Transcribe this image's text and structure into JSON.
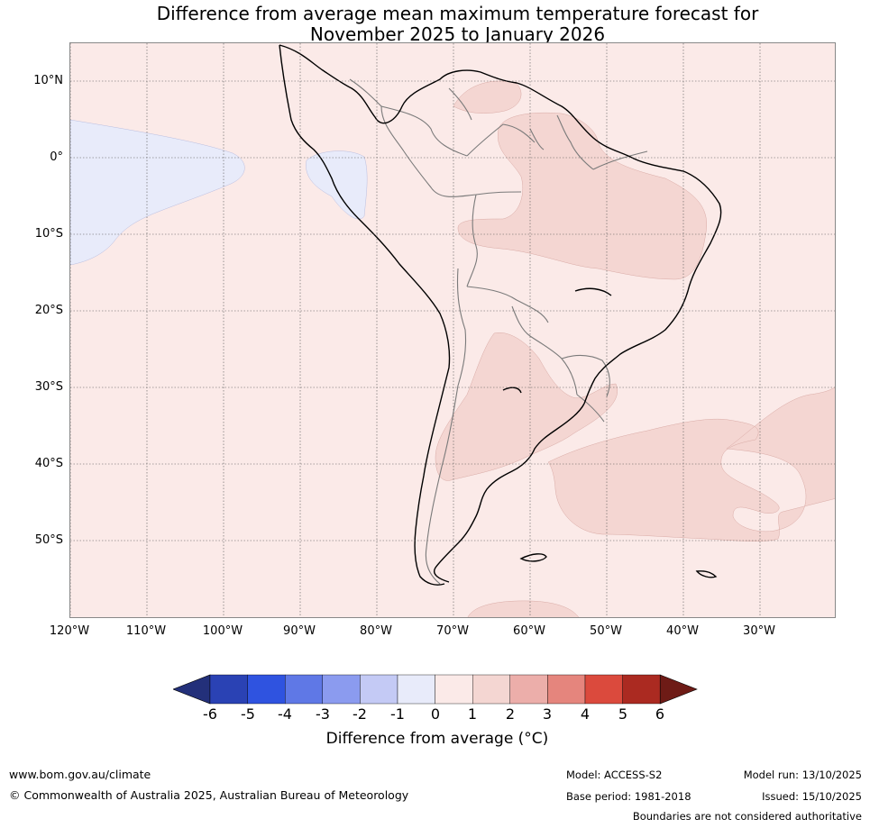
{
  "title": {
    "line1": "Difference from average mean maximum temperature forecast for",
    "line2": "November 2025 to January 2026"
  },
  "map": {
    "lat_labels": [
      "10°N",
      "0°",
      "10°S",
      "20°S",
      "30°S",
      "40°S",
      "50°S"
    ],
    "lon_labels": [
      "120°W",
      "110°W",
      "100°W",
      "90°W",
      "80°W",
      "70°W",
      "60°W",
      "50°W",
      "40°W",
      "30°W"
    ],
    "colors": {
      "band_0_1": "#fbeae8",
      "band_1_2": "#f4d6d2",
      "band_n1_0": "#e8ebfa",
      "coast": "#000000",
      "border": "#7a7a7a",
      "grid": "#555555"
    }
  },
  "colorbar": {
    "ticks": [
      "-6",
      "-5",
      "-4",
      "-3",
      "-2",
      "-1",
      "0",
      "1",
      "2",
      "3",
      "4",
      "5",
      "6"
    ],
    "colors": [
      "#23307a",
      "#2a42b4",
      "#2f53e0",
      "#5f78e6",
      "#8b9bef",
      "#c4caf5",
      "#e8ebfa",
      "#fbeae8",
      "#f4d6d2",
      "#ecaeaa",
      "#e5857d",
      "#db4a3d",
      "#ab2a21",
      "#6e1b16"
    ],
    "label": "Difference from average (°C)"
  },
  "footer": {
    "website": "www.bom.gov.au/climate",
    "copyright": "© Commonwealth of Australia 2025, Australian Bureau of Meteorology",
    "model": "Model: ACCESS-S2",
    "base_period": "Base period: 1981-2018",
    "model_run": "Model run: 13/10/2025",
    "issued": "Issued: 15/10/2025",
    "disclaimer": "Boundaries are not considered authoritative"
  }
}
